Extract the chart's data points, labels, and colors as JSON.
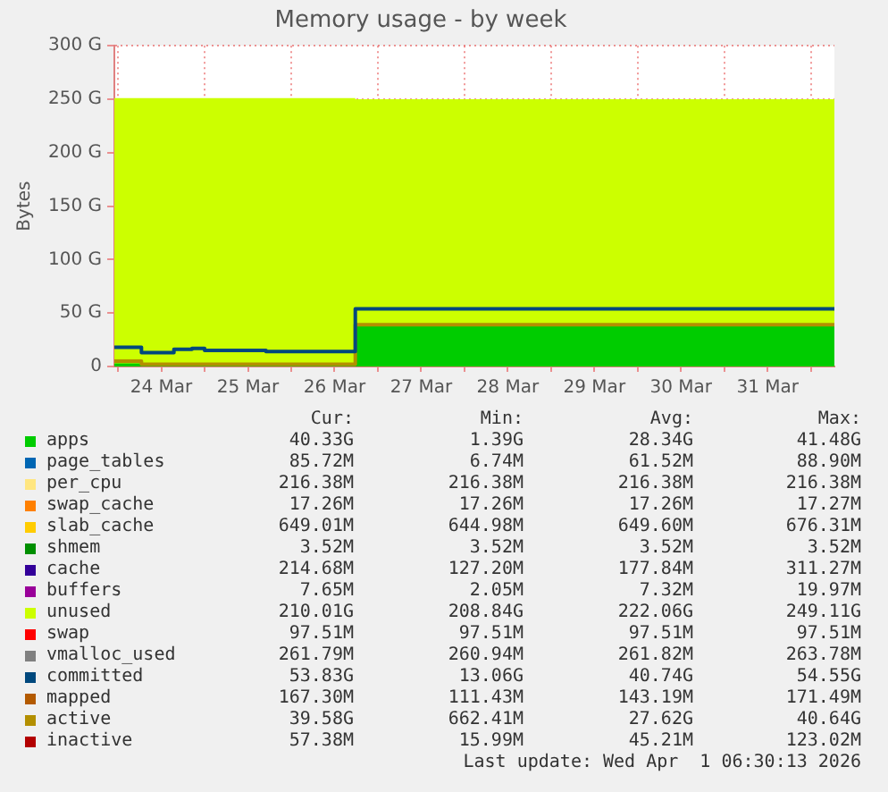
{
  "chart_data": {
    "type": "area",
    "title": "Memory usage - by week",
    "ylabel": "Bytes",
    "stacked": true,
    "grid": true,
    "legend": "bottom",
    "x": [
      "2026-03-23T23:00",
      "2026-03-24T06:30",
      "2026-03-24T15:30",
      "2026-03-24T20:30",
      "2026-03-25T00:00",
      "2026-03-25T17:00",
      "2026-03-26T17:45",
      "2026-04-01T06:30"
    ],
    "xlim": [
      "2026-03-23T23:00",
      "2026-04-01T06:30"
    ],
    "xticks": [
      {
        "value": "2026-03-24T00:00",
        "label": null
      },
      {
        "value": "2026-03-24T12:00",
        "label": "24 Mar"
      },
      {
        "value": "2026-03-25T00:00",
        "label": null
      },
      {
        "value": "2026-03-25T12:00",
        "label": "25 Mar"
      },
      {
        "value": "2026-03-26T00:00",
        "label": null
      },
      {
        "value": "2026-03-26T12:00",
        "label": "26 Mar"
      },
      {
        "value": "2026-03-27T00:00",
        "label": null
      },
      {
        "value": "2026-03-27T12:00",
        "label": "27 Mar"
      },
      {
        "value": "2026-03-28T00:00",
        "label": null
      },
      {
        "value": "2026-03-28T12:00",
        "label": "28 Mar"
      },
      {
        "value": "2026-03-29T00:00",
        "label": null
      },
      {
        "value": "2026-03-29T12:00",
        "label": "29 Mar"
      },
      {
        "value": "2026-03-30T00:00",
        "label": null
      },
      {
        "value": "2026-03-30T12:00",
        "label": "30 Mar"
      },
      {
        "value": "2026-03-31T00:00",
        "label": null
      },
      {
        "value": "2026-03-31T12:00",
        "label": "31 Mar"
      },
      {
        "value": "2026-04-01T00:00",
        "label": null
      }
    ],
    "ylim": [
      0,
      300
    ],
    "yticks": [
      {
        "value": 0,
        "label": "0"
      },
      {
        "value": 50,
        "label": "50 G"
      },
      {
        "value": 100,
        "label": "100 G"
      },
      {
        "value": 150,
        "label": "150 G"
      },
      {
        "value": 200,
        "label": "200 G"
      },
      {
        "value": 250,
        "label": "250 G"
      },
      {
        "value": 300,
        "label": "300 G"
      }
    ],
    "series": [
      {
        "name": "apps",
        "color": "#00cc00",
        "values": [
          3,
          1,
          1,
          1,
          1,
          1,
          40,
          40
        ]
      },
      {
        "name": "page_tables",
        "color": "#0066b3",
        "values": [
          null,
          null,
          null,
          null,
          null,
          null,
          null,
          null
        ]
      },
      {
        "name": "per_cpu",
        "color": "#ffe680",
        "values": [
          null,
          null,
          null,
          null,
          null,
          null,
          null,
          null
        ]
      },
      {
        "name": "swap_cache",
        "color": "#ff8000",
        "values": [
          null,
          null,
          null,
          null,
          null,
          null,
          null,
          null
        ]
      },
      {
        "name": "slab_cache",
        "color": "#ffcc00",
        "values": [
          null,
          null,
          null,
          null,
          null,
          null,
          null,
          null
        ]
      },
      {
        "name": "shmem",
        "color": "#008f00",
        "values": [
          null,
          null,
          null,
          null,
          null,
          null,
          null,
          null
        ]
      },
      {
        "name": "cache",
        "color": "#330099",
        "values": [
          null,
          null,
          null,
          null,
          null,
          null,
          null,
          null
        ]
      },
      {
        "name": "buffers",
        "color": "#990099",
        "values": [
          null,
          null,
          null,
          null,
          null,
          null,
          null,
          null
        ]
      },
      {
        "name": "unused",
        "color": "#ccff00",
        "values": [
          248,
          250,
          250,
          250,
          250,
          250,
          210,
          210
        ]
      },
      {
        "name": "swap",
        "color": "#ff0000",
        "values": [
          null,
          null,
          null,
          null,
          null,
          null,
          null,
          null
        ]
      },
      {
        "name": "vmalloc_used",
        "color": "#808080",
        "type": "line",
        "values": [
          null,
          null,
          null,
          null,
          null,
          null,
          null,
          null
        ]
      },
      {
        "name": "committed",
        "color": "#00487d",
        "type": "step",
        "values": [
          18,
          13,
          16,
          17,
          15,
          14,
          54,
          54
        ]
      },
      {
        "name": "mapped",
        "color": "#b35a00",
        "type": "line",
        "values": [
          null,
          null,
          null,
          null,
          null,
          null,
          null,
          null
        ]
      },
      {
        "name": "active",
        "color": "#b38f00",
        "type": "step",
        "values": [
          5,
          2,
          2,
          2,
          2,
          2,
          39,
          39
        ]
      },
      {
        "name": "inactive",
        "color": "#b30000",
        "type": "line",
        "values": [
          null,
          null,
          null,
          null,
          null,
          null,
          null,
          null
        ]
      }
    ],
    "annotations": [
      "Cur:",
      "Min:",
      "Avg:",
      "Max:",
      "40.33G",
      "1.39G",
      "28.34G",
      "41.48G",
      "85.72M",
      "6.74M",
      "61.52M",
      "88.90M",
      "216.38M",
      "216.38M",
      "216.38M",
      "216.38M",
      "17.26M",
      "17.26M",
      "17.26M",
      "17.27M",
      "649.01M",
      "644.98M",
      "649.60M",
      "676.31M",
      "3.52M",
      "3.52M",
      "3.52M",
      "3.52M",
      "214.68M",
      "127.20M",
      "177.84M",
      "311.27M",
      "7.65M",
      "2.05M",
      "7.32M",
      "19.97M",
      "210.01G",
      "208.84G",
      "222.06G",
      "249.11G",
      "97.51M",
      "97.51M",
      "97.51M",
      "97.51M",
      "261.79M",
      "260.94M",
      "261.82M",
      "263.78M",
      "53.83G",
      "13.06G",
      "40.74G",
      "54.55G",
      "167.30M",
      "111.43M",
      "143.19M",
      "171.49M",
      "39.58G",
      "662.41M",
      "27.62G",
      "40.64G",
      "57.38M",
      "15.99M",
      "45.21M",
      "123.02M",
      "Last update: Wed Apr  1 06:30:13 2026"
    ]
  }
}
